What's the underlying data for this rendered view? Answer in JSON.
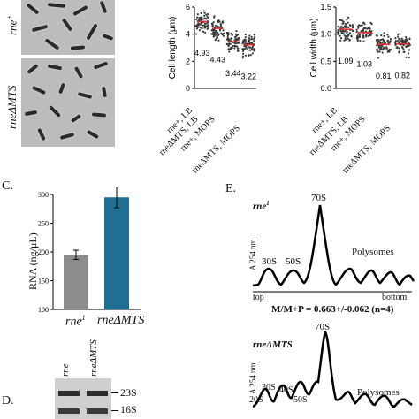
{
  "panelA": {
    "top_label": "rne",
    "top_sup": "+",
    "bottom_label": "rneΔMTS"
  },
  "panelB": {
    "charts": [
      {
        "type": "scatter",
        "ylabel": "Cell length (μm)",
        "ylim": [
          0,
          6
        ],
        "yticks": [
          "0",
          "2",
          "4",
          "6"
        ],
        "categories": [
          "rne+, LB",
          "rneΔMTS, LB",
          "rne+, MOPS",
          "rneΔMTS, MOPS"
        ],
        "means": [
          4.93,
          4.43,
          3.44,
          3.22
        ],
        "value_labels": [
          "4.93",
          "4.43",
          "3.44",
          "3.22"
        ]
      },
      {
        "type": "scatter",
        "ylabel": "Cell width (μm)",
        "ylim": [
          0,
          1.5
        ],
        "yticks": [
          "0.0",
          "0.5",
          "1.0",
          "1.5"
        ],
        "categories": [
          "rne+, LB",
          "rneΔMTS, LB",
          "rne+, MOPS",
          "rneΔMTS, MOPS"
        ],
        "means": [
          1.09,
          1.03,
          0.81,
          0.82
        ],
        "value_labels": [
          "1.09",
          "1.03",
          "0.81",
          "0.82"
        ]
      }
    ]
  },
  "panelC": {
    "label": "C.",
    "chart_data": {
      "type": "bar",
      "categories": [
        "rne",
        "rneΔMTS"
      ],
      "values": [
        195,
        295
      ],
      "errors": [
        8,
        18
      ],
      "colors": [
        "#8c8c8c",
        "#1f6f95"
      ],
      "ylabel": "RNA (ng/μL)",
      "ylim": [
        0,
        300
      ],
      "yticks": [
        "100",
        "150",
        "200",
        "250",
        "300"
      ]
    },
    "cat1_label": "rne",
    "cat1_sup": "1",
    "cat2_label": "rneΔMTS"
  },
  "panelD": {
    "label": "D.",
    "lane1": "rne",
    "lane2": "rneΔMTS",
    "band1": "23S",
    "band2": "16S"
  },
  "panelE": {
    "label": "E.",
    "top": {
      "strain": "rne",
      "strain_sup": "1",
      "ylabel": "A 254 nm",
      "peaks": [
        "30S",
        "50S",
        "70S",
        "Polysomes"
      ],
      "axis_top": "top",
      "axis_bottom": "bottom",
      "ratio": "M/M+P = 0.663+/-0.062 (n=4)"
    },
    "bottom": {
      "strain": "rneΔMTS",
      "ylabel": "A 254 nm",
      "peaks": [
        "20S",
        "30S",
        "40S",
        "50S",
        "70S",
        "Polysomes"
      ]
    }
  }
}
